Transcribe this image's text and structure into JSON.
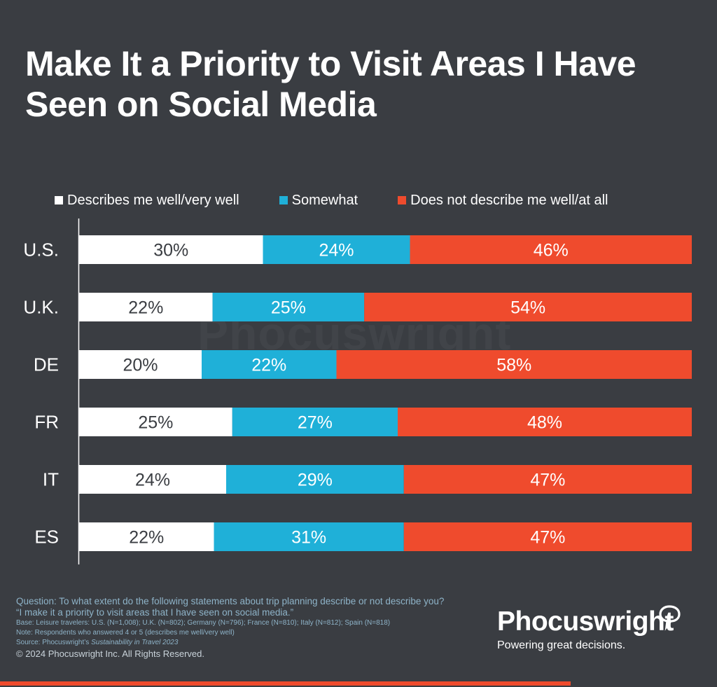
{
  "title": "Make It a Priority to Visit Areas I Have Seen on Social Media",
  "colors": {
    "background": "#3a3d42",
    "well": "#ffffff",
    "somewhat": "#1fb0d8",
    "not": "#ef4b2d",
    "footer_bar": "#ef4b2d"
  },
  "chart_data": {
    "type": "bar",
    "orientation": "horizontal",
    "stacked": true,
    "percent_stacked": true,
    "legend_position": "top",
    "categories": [
      "U.S.",
      "U.K.",
      "DE",
      "FR",
      "IT",
      "ES"
    ],
    "series": [
      {
        "name": "Describes me well/very well",
        "color": "#ffffff",
        "label_color": "#3a3d42",
        "values": [
          30,
          22,
          20,
          25,
          24,
          22
        ],
        "labels": [
          "30%",
          "22%",
          "20%",
          "25%",
          "24%",
          "22%"
        ]
      },
      {
        "name": "Somewhat",
        "color": "#1fb0d8",
        "label_color": "#ffffff",
        "values": [
          24,
          25,
          22,
          27,
          29,
          31
        ],
        "labels": [
          "24%",
          "25%",
          "22%",
          "27%",
          "29%",
          "31%"
        ]
      },
      {
        "name": "Does not describe me well/at all",
        "color": "#ef4b2d",
        "label_color": "#ffffff",
        "values": [
          46,
          54,
          58,
          48,
          47,
          47
        ],
        "labels": [
          "46%",
          "54%",
          "58%",
          "48%",
          "47%",
          "47%"
        ]
      }
    ]
  },
  "notes": {
    "question": "Question: To what extent do the following statements about trip planning describe or not describe you?",
    "statement": "“I make it a priority to visit areas that I have seen on social media.”",
    "base": "Base: Leisure travelers: U.S. (N=1,008); U.K. (N=802); Germany (N=796); France (N=810); Italy (N=812); Spain (N=818)",
    "note": "Note: Respondents who answered 4 or 5 (describes me well/very well)",
    "source_prefix": "Source: Phocuswright’s ",
    "source_title": "Sustainability in Travel 2023",
    "copyright": "© 2024 Phocuswright Inc. All Rights Reserved."
  },
  "brand": {
    "name": "Phocuswright",
    "tagline": "Powering great decisions.",
    "watermark": "Phocuswright"
  }
}
